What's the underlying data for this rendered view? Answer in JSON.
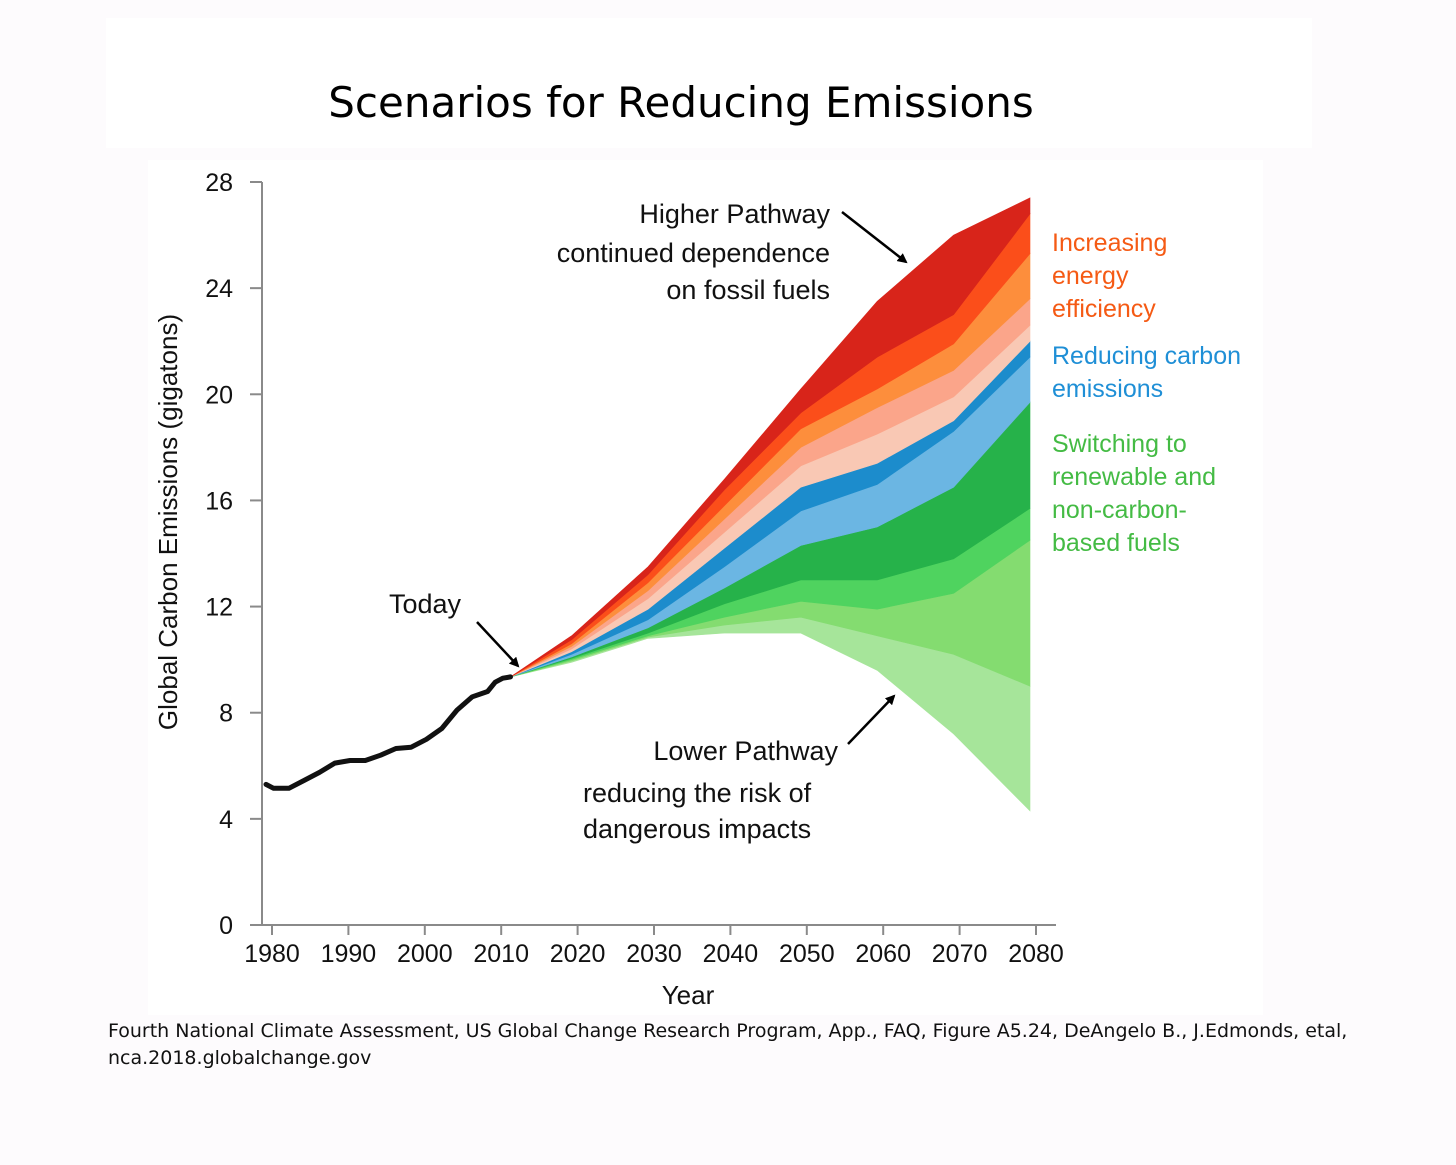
{
  "title": "Scenarios for Reducing Emissions",
  "source": {
    "line1": "Fourth National Climate Assessment, US Global Change Research Program, App., FAQ, Figure A5.24, DeAngelo B., J.Edmonds, etal,",
    "line2": "nca.2018.globalchange.gov"
  },
  "colors": {
    "historical": "#111111",
    "band_colors": [
      "#a6e59a",
      "#84dc70",
      "#4fd35f",
      "#26b24a",
      "#6bb6e3",
      "#1c8ccc",
      "#f9c8b4",
      "#fba58a",
      "#fd8e3c",
      "#fb4e1a",
      "#d8241a"
    ],
    "legend_orange": "#f55a14",
    "legend_blue": "#1f8fd6",
    "legend_green": "#44bb44"
  },
  "chart_data": {
    "type": "area",
    "title": "Scenarios for Reducing Emissions",
    "xlabel": "Year",
    "ylabel": "Global Carbon Emissions (gigatons)",
    "xlim": [
      1980,
      2082
    ],
    "ylim": [
      0,
      28
    ],
    "xticks": [
      1980,
      1990,
      2000,
      2010,
      2020,
      2030,
      2040,
      2050,
      2060,
      2070,
      2080
    ],
    "yticks": [
      0,
      4,
      8,
      12,
      16,
      20,
      24,
      28
    ],
    "grid": false,
    "historical": {
      "x": [
        1980,
        1981,
        1983,
        1985,
        1987,
        1989,
        1991,
        1993,
        1995,
        1997,
        1999,
        2001,
        2003,
        2005,
        2007,
        2009,
        2010,
        2011,
        2012
      ],
      "y": [
        5.3,
        5.15,
        5.15,
        5.45,
        5.75,
        6.1,
        6.2,
        6.2,
        6.4,
        6.65,
        6.7,
        7.0,
        7.4,
        8.1,
        8.6,
        8.8,
        9.15,
        9.3,
        9.35
      ]
    },
    "scenario_x": [
      2012,
      2020,
      2030,
      2040,
      2050,
      2060,
      2070,
      2080
    ],
    "scenario_boundaries": [
      [
        9.35,
        9.9,
        10.8,
        11.0,
        11.0,
        9.6,
        7.2,
        4.3
      ],
      [
        9.35,
        9.95,
        10.85,
        11.3,
        11.6,
        10.9,
        10.2,
        9.0
      ],
      [
        9.35,
        10.0,
        10.9,
        11.6,
        12.2,
        11.9,
        12.5,
        14.5
      ],
      [
        9.35,
        10.05,
        11.0,
        12.1,
        13.0,
        13.0,
        13.8,
        15.7
      ],
      [
        9.35,
        10.1,
        11.2,
        12.7,
        14.3,
        15.0,
        16.5,
        19.7
      ],
      [
        9.35,
        10.2,
        11.5,
        13.5,
        15.6,
        16.6,
        18.6,
        21.4
      ],
      [
        9.35,
        10.3,
        11.9,
        14.2,
        16.5,
        17.4,
        19.0,
        22.0
      ],
      [
        9.35,
        10.4,
        12.3,
        14.8,
        17.3,
        18.5,
        19.9,
        22.6
      ],
      [
        9.35,
        10.5,
        12.6,
        15.3,
        18.0,
        19.5,
        20.9,
        23.6
      ],
      [
        9.35,
        10.6,
        12.9,
        15.8,
        18.7,
        20.2,
        21.9,
        25.3
      ],
      [
        9.35,
        10.75,
        13.2,
        16.4,
        19.3,
        21.4,
        23.0,
        26.8
      ],
      [
        9.35,
        10.9,
        13.5,
        16.8,
        20.2,
        23.5,
        26.0,
        27.4
      ]
    ],
    "annotations": {
      "higher_line1": "Higher Pathway",
      "higher_line2": "continued dependence",
      "higher_line3": "on fossil fuels",
      "today": "Today",
      "lower_line1": "Lower Pathway",
      "lower_line2": "reducing the risk of",
      "lower_line3": "dangerous impacts"
    },
    "legend": {
      "orange_1": "Increasing",
      "orange_2": "energy",
      "orange_3": "efficiency",
      "blue_1": "Reducing carbon",
      "blue_2": "emissions",
      "green_1": "Switching to",
      "green_2": "renewable and",
      "green_3": "non-carbon-",
      "green_4": "based fuels"
    }
  }
}
